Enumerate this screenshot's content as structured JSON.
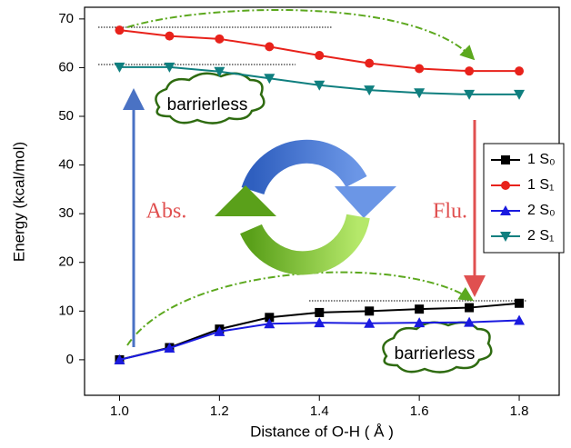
{
  "chart_data": {
    "type": "line",
    "x_label": "Distance of O-H ( Å )",
    "y_label": "Energy (kcal/mol)",
    "x": [
      1.0,
      1.1,
      1.2,
      1.3,
      1.4,
      1.5,
      1.6,
      1.7,
      1.8
    ],
    "series": [
      {
        "name": "1 S₀",
        "color": "#000000",
        "marker": "square",
        "values": [
          0,
          2.5,
          6.3,
          8.7,
          9.7,
          10.0,
          10.4,
          10.7,
          11.6
        ]
      },
      {
        "name": "1 S₁",
        "color": "#e8221b",
        "marker": "circle",
        "values": [
          67.7,
          66.5,
          65.9,
          64.3,
          62.5,
          60.9,
          59.8,
          59.3,
          59.3
        ]
      },
      {
        "name": "2 S₀",
        "color": "#1a1adf",
        "marker": "triangle-up",
        "values": [
          0,
          2.4,
          5.8,
          7.4,
          7.6,
          7.5,
          7.6,
          7.7,
          8.1
        ]
      },
      {
        "name": "2 S₁",
        "color": "#0f7f7f",
        "marker": "triangle-down",
        "values": [
          60.1,
          60.1,
          59.2,
          57.8,
          56.4,
          55.4,
          54.8,
          54.5,
          54.5
        ]
      }
    ],
    "xlim": [
      0.93,
      1.88
    ],
    "ylim": [
      -7.3,
      72.4
    ],
    "xticks": [
      {
        "value": 1,
        "label": "1.0"
      },
      1.2,
      1.4,
      1.6,
      1.8
    ],
    "yticks": [
      0,
      10,
      20,
      30,
      40,
      50,
      60,
      70
    ],
    "legend": "right",
    "annotations": [
      "barrierless",
      "barrierless",
      "Abs.",
      "Flu."
    ]
  }
}
